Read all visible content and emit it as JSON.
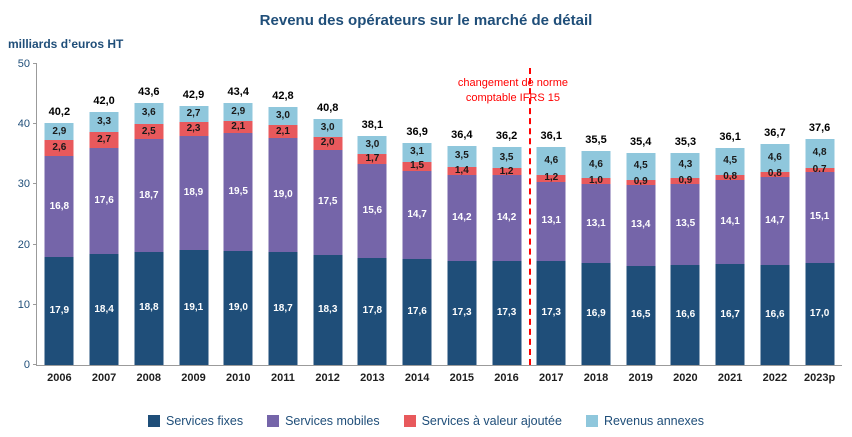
{
  "title": "Revenu des opérateurs sur le marché de détail",
  "ylabel": "milliards d’euros HT",
  "annotation": {
    "line1": "changement de norme",
    "line2": "comptable IFRS 15"
  },
  "colors": {
    "title": "#1F4E79",
    "annotation": "#FF0000",
    "axis": "#9b9b9b",
    "services_fixes": "#1F4E79",
    "services_mobiles": "#7565A9",
    "services_valeur_ajoutee": "#E8595C",
    "revenus_annexes": "#8FC7DC"
  },
  "chart_data": {
    "type": "bar",
    "stacked": true,
    "title": "Revenu des opérateurs sur le marché de détail",
    "xlabel": "",
    "ylabel": "milliards d’euros HT",
    "ylim": [
      0,
      50
    ],
    "yticks": [
      0,
      10,
      20,
      30,
      40,
      50
    ],
    "grid": false,
    "legend_position": "bottom",
    "categories": [
      "2006",
      "2007",
      "2008",
      "2009",
      "2010",
      "2011",
      "2012",
      "2013",
      "2014",
      "2015",
      "2016",
      "2017",
      "2018",
      "2019",
      "2020",
      "2021",
      "2022",
      "2023p"
    ],
    "series": [
      {
        "key": "services-fixes",
        "name": "Services fixes",
        "color": "#1F4E79",
        "label_color": "#FFFFFF",
        "values": [
          17.9,
          18.4,
          18.8,
          19.1,
          19.0,
          18.7,
          18.3,
          17.8,
          17.6,
          17.3,
          17.3,
          17.3,
          16.9,
          16.5,
          16.6,
          16.7,
          16.6,
          17.0
        ]
      },
      {
        "key": "services-mobiles",
        "name": "Services mobiles",
        "color": "#7565A9",
        "label_color": "#FFFFFF",
        "values": [
          16.8,
          17.6,
          18.7,
          18.9,
          19.5,
          19.0,
          17.5,
          15.6,
          14.7,
          14.2,
          14.2,
          13.1,
          13.1,
          13.4,
          13.5,
          14.1,
          14.7,
          15.1
        ]
      },
      {
        "key": "services-valeur-ajoutee",
        "name": "Services à valeur ajoutée",
        "color": "#E8595C",
        "label_color": "#1A1A1A",
        "values": [
          2.6,
          2.7,
          2.5,
          2.3,
          2.1,
          2.1,
          2.0,
          1.7,
          1.5,
          1.4,
          1.2,
          1.2,
          1.0,
          0.9,
          0.9,
          0.8,
          0.8,
          0.7
        ]
      },
      {
        "key": "revenus-annexes",
        "name": "Revenus annexes",
        "color": "#8FC7DC",
        "label_color": "#1A1A1A",
        "values": [
          2.9,
          3.3,
          3.6,
          2.7,
          2.9,
          3.0,
          3.0,
          3.0,
          3.1,
          3.5,
          3.5,
          4.6,
          4.6,
          4.5,
          4.3,
          4.5,
          4.6,
          4.8
        ]
      }
    ],
    "totals": [
      40.2,
      42.0,
      43.6,
      42.9,
      43.4,
      42.8,
      40.8,
      38.1,
      36.9,
      36.4,
      36.2,
      36.1,
      35.5,
      35.4,
      35.3,
      36.1,
      36.7,
      37.6
    ],
    "annotation_between": [
      "2016",
      "2017"
    ]
  }
}
